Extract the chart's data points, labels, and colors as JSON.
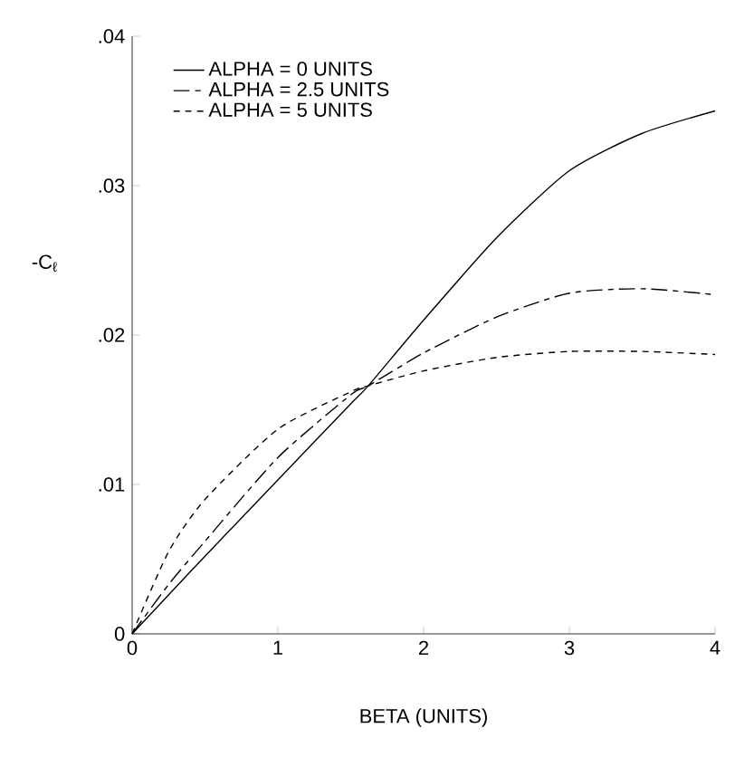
{
  "chart_data": {
    "type": "line",
    "xlabel": "BETA (UNITS)",
    "ylabel": "-C$_{ℓ}$",
    "legend": "top left",
    "grid": false,
    "xlim": [
      0,
      4
    ],
    "ylim": [
      0,
      0.04
    ],
    "xticks": [
      0,
      1,
      2,
      3,
      4
    ],
    "yticks": [
      0,
      {
        "value": 0.01,
        "label": ".01"
      },
      {
        "value": 0.02,
        "label": ".02"
      },
      {
        "value": 0.03,
        "label": ".03"
      },
      {
        "value": 0.04,
        "label": ".04"
      }
    ],
    "x": [
      0,
      0.25,
      0.5,
      1,
      1.5,
      1.62,
      2,
      2.5,
      3,
      3.5,
      4
    ],
    "series": [
      {
        "name": "ALPHA = 0 UNITS",
        "color": "#000000",
        "line_style": "solid",
        "values": [
          0,
          0.0026,
          0.0052,
          0.0103,
          0.0154,
          0.0166,
          0.021,
          0.0265,
          0.031,
          0.0335,
          0.035
        ]
      },
      {
        "name": "ALPHA = 2.5 UNITS",
        "color": "#000000",
        "line_style": "dashed",
        "values": [
          0,
          0.0033,
          0.0062,
          0.0118,
          0.016,
          0.0166,
          0.0188,
          0.0212,
          0.0228,
          0.0231,
          0.0227
        ]
      },
      {
        "name": "ALPHA = 5 UNITS",
        "color": "#000000",
        "line_style": "dashed",
        "values": [
          0,
          0.0055,
          0.009,
          0.0137,
          0.0162,
          0.0166,
          0.0176,
          0.0185,
          0.0189,
          0.0189,
          0.0187
        ]
      }
    ]
  }
}
